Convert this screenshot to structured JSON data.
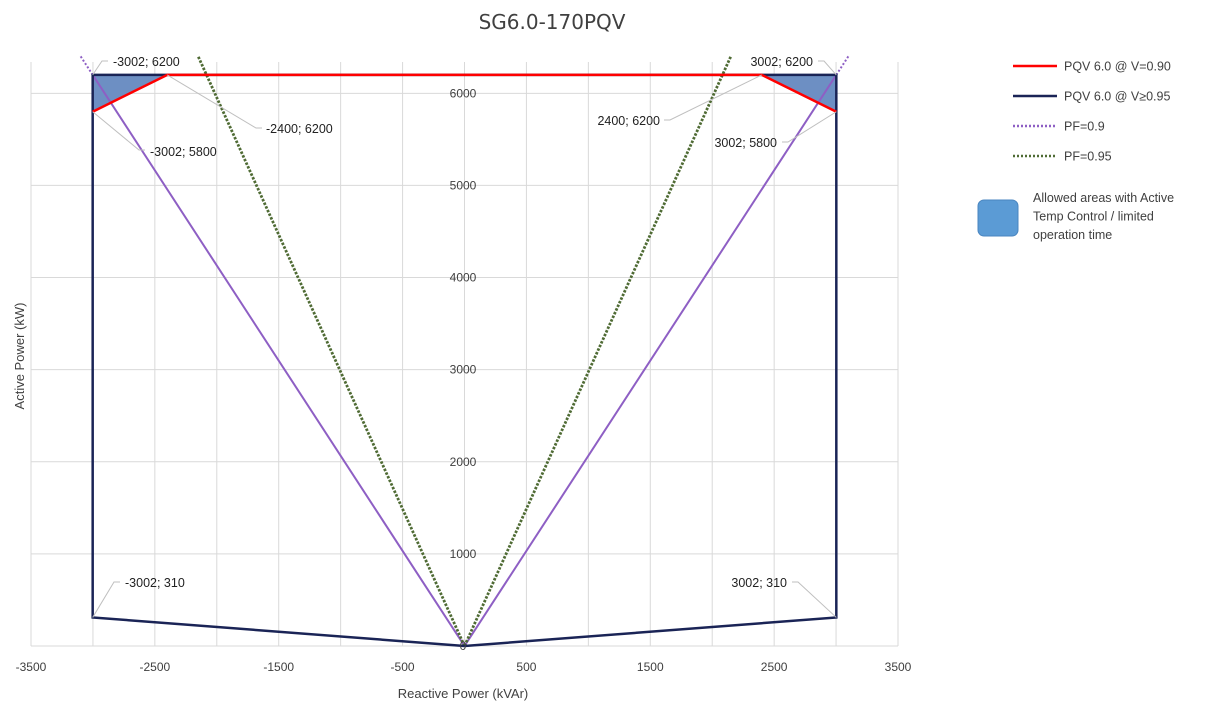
{
  "chart_data": {
    "type": "line",
    "title": "SG6.0-170PQV",
    "xlabel": "Reactive Power (kVAr)",
    "ylabel": "Active Power (kW)",
    "xlim": [
      -3500,
      3500
    ],
    "ylim": [
      0,
      6200
    ],
    "xticks": [
      -3500,
      -2500,
      -1500,
      -500,
      500,
      1500,
      2500,
      3500
    ],
    "yticks": [
      0,
      1000,
      2000,
      3000,
      4000,
      5000,
      6000
    ],
    "grid": true,
    "legend_position": "right",
    "colors": {
      "v090": "#ff0000",
      "v095": "#1a2456",
      "pf09": "#8e5fc4",
      "pf095": "#4f6b34",
      "allowed_area": "#5b9bd5",
      "allowed_area_fill": "#6d8fc3"
    },
    "series": [
      {
        "key": "v090",
        "name": "PQV 6.0 @ V=0.90",
        "style": "solid",
        "points": [
          [
            -3002,
            5800
          ],
          [
            -2400,
            6200
          ],
          [
            2400,
            6200
          ],
          [
            3002,
            5800
          ]
        ]
      },
      {
        "key": "v095",
        "name": "PQV 6.0 @ V≥0.95",
        "style": "solid",
        "points": [
          [
            0,
            0
          ],
          [
            -3002,
            310
          ],
          [
            -3002,
            6200
          ],
          [
            3002,
            6200
          ],
          [
            3002,
            310
          ],
          [
            0,
            0
          ]
        ]
      },
      {
        "key": "pf09",
        "name": "PF=0.9",
        "style": "dotted",
        "points": [
          [
            -3100,
            6403
          ],
          [
            0,
            0
          ],
          [
            3100,
            6403
          ]
        ]
      },
      {
        "key": "pf095",
        "name": "PF=0.95",
        "style": "dotted",
        "points": [
          [
            -2150,
            6400
          ],
          [
            0,
            0
          ],
          [
            2150,
            6400
          ]
        ]
      }
    ],
    "allowed_areas": {
      "name": "Allowed areas with Active Temp Control / limited operation time",
      "polygons": [
        [
          [
            -3002,
            6200
          ],
          [
            -2400,
            6200
          ],
          [
            -3002,
            5800
          ]
        ],
        [
          [
            3002,
            6200
          ],
          [
            2400,
            6200
          ],
          [
            3002,
            5800
          ]
        ]
      ]
    },
    "annotations": [
      {
        "text": "-3002; 6200",
        "x": -3002,
        "y": 6200
      },
      {
        "text": "-2400; 6200",
        "x": -2400,
        "y": 6200
      },
      {
        "text": "-3002; 5800",
        "x": -3002,
        "y": 5800
      },
      {
        "text": "3002; 6200",
        "x": 3002,
        "y": 6200
      },
      {
        "text": "2400; 6200",
        "x": 2400,
        "y": 6200
      },
      {
        "text": "3002; 5800",
        "x": 3002,
        "y": 5800
      },
      {
        "text": "-3002; 310",
        "x": -3002,
        "y": 310
      },
      {
        "text": "3002; 310",
        "x": 3002,
        "y": 310
      }
    ],
    "legend": [
      {
        "key": "v090",
        "label": "PQV 6.0 @ V=0.90"
      },
      {
        "key": "v095",
        "label": "PQV 6.0 @ V≥0.95"
      },
      {
        "key": "pf09",
        "label": "PF=0.9"
      },
      {
        "key": "pf095",
        "label": "PF=0.95"
      }
    ],
    "legend_area_lines": [
      "Allowed areas with Active",
      "Temp Control / limited",
      "operation time"
    ]
  }
}
